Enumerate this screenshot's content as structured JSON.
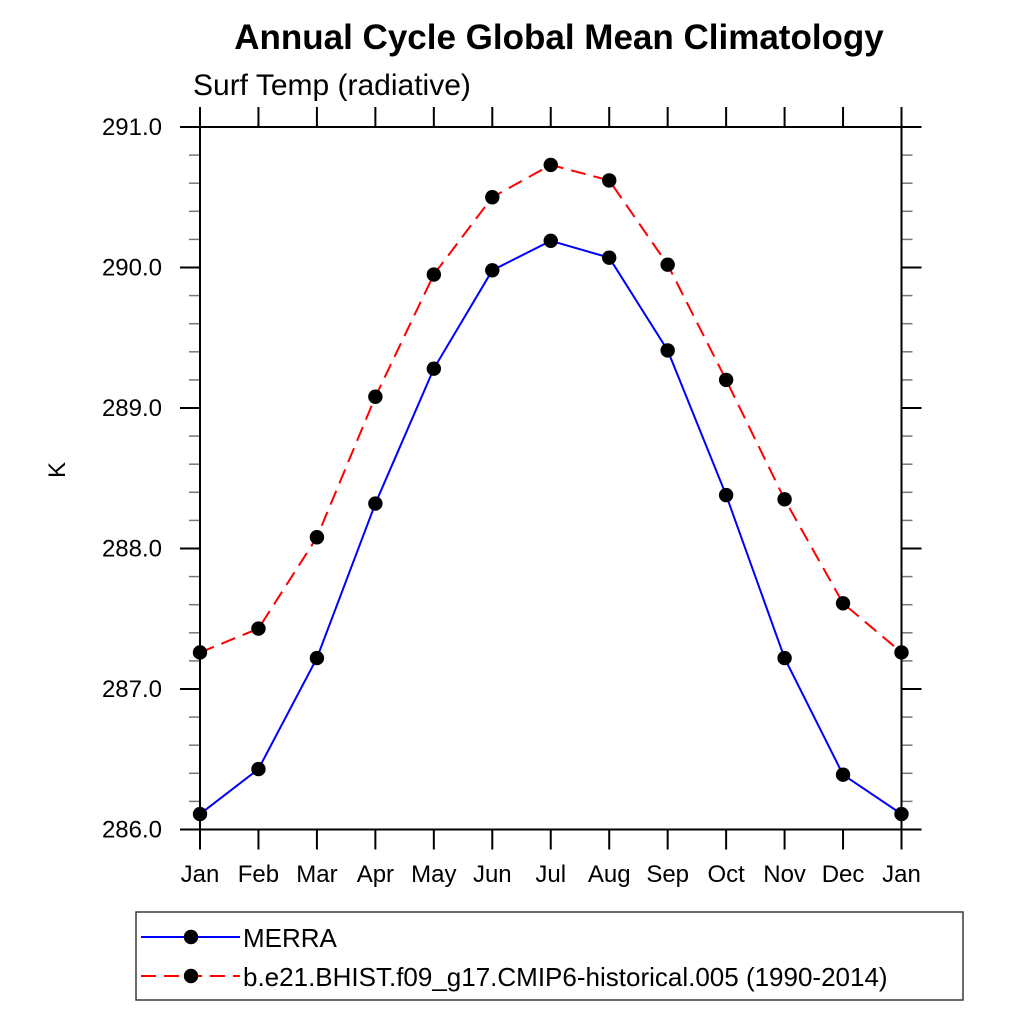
{
  "chart_data": {
    "type": "line",
    "title": "Annual Cycle Global Mean Climatology",
    "subtitle": "Surf Temp (radiative)",
    "ylabel": "K",
    "x_categories": [
      "Jan",
      "Feb",
      "Mar",
      "Apr",
      "May",
      "Jun",
      "Jul",
      "Aug",
      "Sep",
      "Oct",
      "Nov",
      "Dec",
      "Jan"
    ],
    "ylim": [
      286.0,
      291.0
    ],
    "ytick_major": 1.0,
    "ytick_minor": 0.2,
    "ytick_labels": [
      "286.0",
      "287.0",
      "288.0",
      "289.0",
      "290.0",
      "291.0"
    ],
    "grid": false,
    "legend_position": "bottom-left-box",
    "series": [
      {
        "name": "MERRA",
        "color": "#0000ff",
        "line_style": "solid",
        "marker": "filled-circle",
        "marker_color": "#000000",
        "values": [
          286.11,
          286.43,
          287.22,
          288.32,
          289.28,
          289.98,
          290.19,
          290.07,
          289.41,
          288.38,
          287.22,
          286.39,
          286.11
        ]
      },
      {
        "name": "b.e21.BHIST.f09_g17.CMIP6-historical.005 (1990-2014)",
        "color": "#ff0000",
        "line_style": "dashed",
        "marker": "filled-circle",
        "marker_color": "#000000",
        "values": [
          287.26,
          287.43,
          288.08,
          289.08,
          289.95,
          290.5,
          290.73,
          290.62,
          290.02,
          289.2,
          288.35,
          287.61,
          287.26
        ]
      }
    ]
  }
}
